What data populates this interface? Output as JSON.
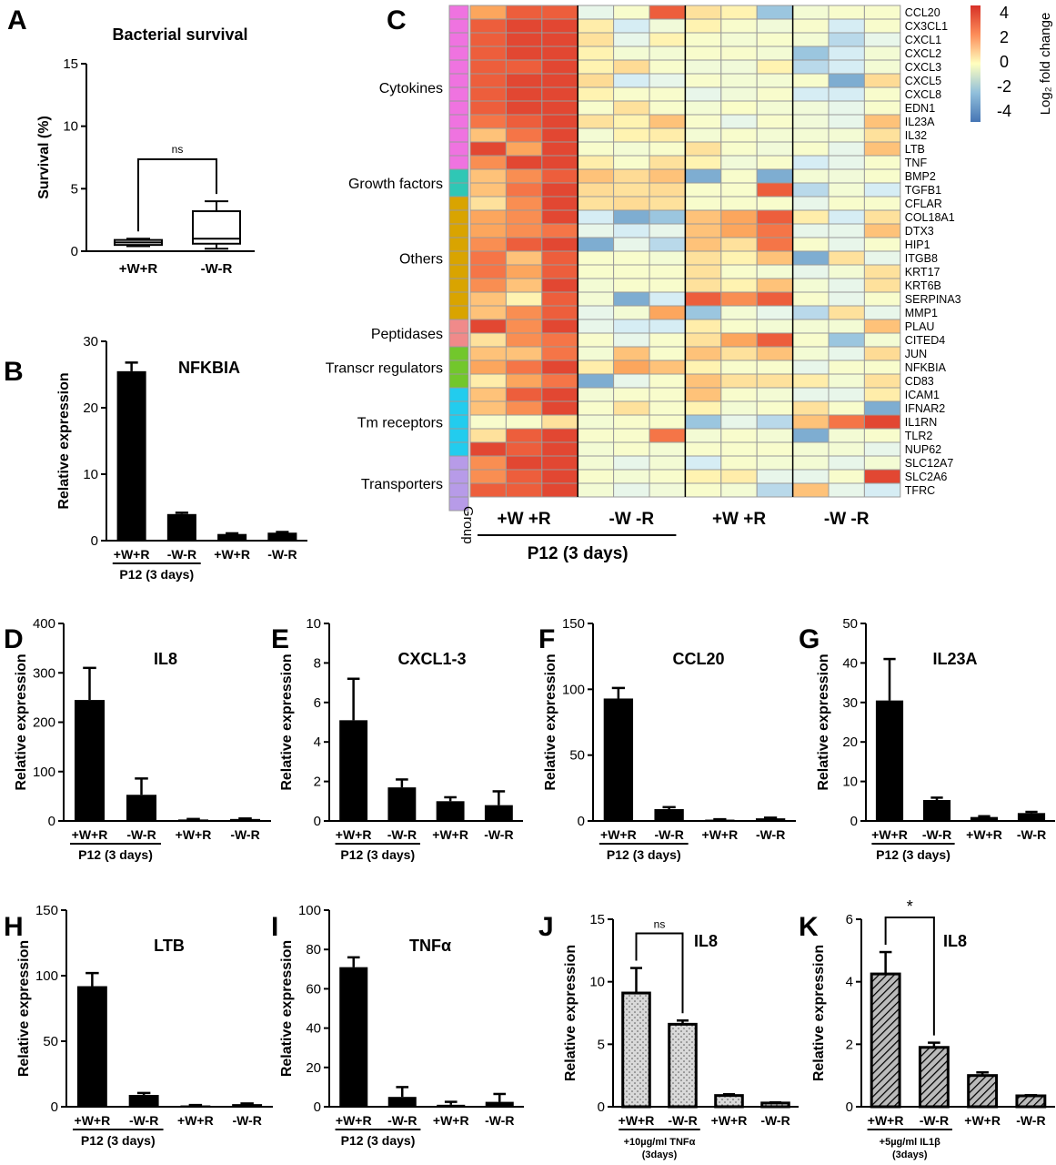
{
  "colors": {
    "bar": "#000000",
    "pattern_light": "#d9d9d9",
    "heat_pos": "#d73027",
    "heat_zero": "#ffffbf",
    "heat_neg": "#4575b4"
  },
  "chart_data": [
    {
      "panel": "A",
      "type": "box",
      "title": "Bacterial survival",
      "ylabel": "Survival (%)",
      "ylim": [
        0,
        15
      ],
      "yticks": [
        0,
        5,
        10,
        15
      ],
      "categories": [
        "+W+R",
        "-W-R"
      ],
      "boxes": [
        {
          "min": 0.4,
          "q1": 0.5,
          "median": 0.7,
          "q3": 0.9,
          "max": 1.0
        },
        {
          "min": 0.2,
          "q1": 0.6,
          "median": 1.0,
          "q3": 3.2,
          "max": 4.0
        }
      ],
      "annotation": "ns"
    },
    {
      "panel": "B",
      "type": "bar",
      "title": "NFKBIA",
      "ylabel": "Relative expression",
      "ylim": [
        0,
        30
      ],
      "yticks": [
        0,
        10,
        20,
        30
      ],
      "categories": [
        "+W+R",
        "-W-R",
        "+W+R",
        "-W-R"
      ],
      "values": [
        25.5,
        4.0,
        1.0,
        1.2
      ],
      "errors": [
        1.3,
        0.2,
        0.1,
        0.1
      ],
      "group_label": "P12 (3 days)"
    },
    {
      "panel": "C",
      "type": "heatmap",
      "legend_title": "Log₂ fold change",
      "legend_ticks": [
        "4",
        "2",
        "0",
        "-2",
        "-4"
      ],
      "group_label": "Group",
      "columns_groups": [
        "+W +R",
        "-W -R",
        "+W +R",
        "-W -R"
      ],
      "bracket_label": "P12 (3 days)",
      "categories": [
        {
          "name": "Cytokines",
          "start": 0,
          "count": 12,
          "color": "#ef73e0"
        },
        {
          "name": "Growth factors",
          "start": 12,
          "count": 2,
          "color": "#2fc7b5"
        },
        {
          "name": "Others",
          "start": 14,
          "count": 9,
          "color": "#d9a400"
        },
        {
          "name": "Peptidases",
          "start": 23,
          "count": 2,
          "color": "#f08a8a"
        },
        {
          "name": "Transcr regulators",
          "start": 25,
          "count": 3,
          "color": "#72c72c"
        },
        {
          "name": "Tm receptors",
          "start": 28,
          "count": 5,
          "color": "#22ccee"
        },
        {
          "name": "Transporters",
          "start": 33,
          "count": 4,
          "color": "#b79be8"
        }
      ],
      "genes": [
        "CCL20",
        "CX3CL1",
        "CXCL1",
        "CXCL2",
        "CXCL3",
        "CXCL5",
        "CXCL8",
        "EDN1",
        "IL23A",
        "IL32",
        "LTB",
        "TNF",
        "BMP2",
        "TGFB1",
        "CFLAR",
        "COL18A1",
        "DTX3",
        "HIP1",
        "ITGB8",
        "KRT17",
        "KRT6B",
        "SERPINA3",
        "MMP1",
        "PLAU",
        "CITED4",
        "JUN",
        "NFKBIA",
        "CD83",
        "ICAM1",
        "IFNAR2",
        "IL1RN",
        "TLR2",
        "NUP62",
        "SLC12A7",
        "SLC2A6",
        "TFRC"
      ],
      "values": [
        [
          1.5,
          3,
          3,
          -1,
          -0.3,
          3,
          0.5,
          0.2,
          -2.5,
          -0.5,
          -0.3,
          -0.3
        ],
        [
          3,
          3.5,
          3.5,
          0.3,
          -1.5,
          -0.6,
          0.2,
          -0.3,
          -0.6,
          -0.3,
          -1.5,
          -0.3
        ],
        [
          3,
          3.5,
          3.5,
          0.5,
          -1,
          0.2,
          -0.3,
          -0.5,
          -0.3,
          -0.5,
          -2,
          -1
        ],
        [
          3,
          3.5,
          3.5,
          0.2,
          -0.5,
          -0.5,
          -0.3,
          -0.3,
          -0.5,
          -2.5,
          -1.5,
          -0.5
        ],
        [
          3,
          3,
          3.5,
          0.2,
          0.6,
          -0.3,
          -0.6,
          -0.6,
          0.2,
          -2,
          -1.5,
          -0.5
        ],
        [
          3,
          3.5,
          3.5,
          0.6,
          -1.5,
          -1,
          -0.3,
          -0.5,
          -0.5,
          -0.3,
          -3,
          0.6
        ],
        [
          3,
          3.5,
          3.5,
          0.2,
          -0.3,
          -0.3,
          -1,
          -0.6,
          -0.3,
          -1.5,
          -1.5,
          -0.3
        ],
        [
          3,
          3.5,
          3.5,
          -0.3,
          0.5,
          -0.3,
          -0.5,
          -0.2,
          -0.5,
          -0.6,
          -1,
          -0.3
        ],
        [
          2.5,
          3,
          3.5,
          0.5,
          0.2,
          1,
          -0.3,
          -1,
          -0.3,
          -0.6,
          -1,
          1
        ],
        [
          1,
          2.5,
          3.5,
          -0.5,
          0.2,
          0.3,
          -0.5,
          -0.3,
          -0.5,
          -0.5,
          -0.5,
          0.5
        ],
        [
          3.5,
          1.5,
          3.5,
          -0.3,
          -0.5,
          -0.3,
          0.5,
          -0.3,
          -0.6,
          -0.3,
          -1,
          1
        ],
        [
          2,
          3.5,
          3.5,
          0.3,
          -0.3,
          0.5,
          0.2,
          -0.6,
          -0.3,
          -1.5,
          -1,
          -0.3
        ],
        [
          1,
          2,
          3,
          1,
          0.6,
          1,
          -3,
          -0.3,
          -3,
          -0.5,
          -0.6,
          -0.3
        ],
        [
          1,
          2.5,
          3.5,
          0.6,
          0.5,
          0.6,
          -0.3,
          -0.3,
          3,
          -2,
          -0.5,
          -1.5
        ],
        [
          0.5,
          2,
          3.5,
          0.5,
          0.6,
          0.5,
          -0.3,
          -0.3,
          -0.3,
          -1,
          -0.3,
          -0.3
        ],
        [
          1.5,
          2,
          3.5,
          -1.5,
          -3,
          -2.5,
          1,
          1.5,
          3,
          0.3,
          -1.5,
          0.5
        ],
        [
          1.5,
          2,
          2.5,
          -1,
          -1.5,
          -1,
          1,
          1.5,
          2.5,
          -1,
          -1,
          1
        ],
        [
          2,
          3,
          3.5,
          -3,
          -1,
          -2,
          1,
          0.5,
          2.5,
          -0.3,
          -1,
          -0.3
        ],
        [
          2.5,
          1,
          3,
          -0.3,
          -0.3,
          -0.5,
          0.5,
          0.2,
          1,
          -3,
          0.5,
          -1
        ],
        [
          2.5,
          1.5,
          3,
          -0.3,
          -0.3,
          -0.3,
          0.5,
          -0.3,
          -0.5,
          -1,
          -0.5,
          0.5
        ],
        [
          2,
          1,
          3.5,
          -0.5,
          -0.3,
          -0.3,
          0.5,
          0.2,
          1,
          -0.5,
          -1,
          0.5
        ],
        [
          1,
          0.2,
          3,
          -0.5,
          -3,
          -1.5,
          3,
          2,
          3,
          -0.3,
          -1,
          -0.3
        ],
        [
          1,
          2,
          3,
          -1,
          -0.5,
          1.5,
          -2.5,
          -0.5,
          -1,
          -2,
          0.5,
          -1
        ],
        [
          3.5,
          2,
          3.5,
          -1,
          -1.5,
          -1.5,
          0.3,
          -0.3,
          -0.5,
          -0.5,
          -0.5,
          1
        ],
        [
          0.5,
          2,
          2.5,
          -0.3,
          -1,
          -0.3,
          0.5,
          1.5,
          3,
          -0.3,
          -2.5,
          -0.5
        ],
        [
          1,
          1,
          2.5,
          -0.5,
          1,
          -0.3,
          1,
          0.5,
          1,
          -0.5,
          -1,
          0.6
        ],
        [
          1.5,
          2.5,
          3.5,
          0.3,
          1.5,
          1,
          0.2,
          -0.3,
          -0.3,
          -1,
          -0.3,
          -0.3
        ],
        [
          0.3,
          1.5,
          2.5,
          -3,
          -1,
          -0.3,
          1,
          0.5,
          0.5,
          0.3,
          -0.5,
          0.5
        ],
        [
          1,
          3,
          3.5,
          -0.5,
          -0.3,
          -0.3,
          1,
          -0.3,
          -0.5,
          -1,
          -1,
          0.3
        ],
        [
          1,
          2,
          3.5,
          -0.3,
          0.5,
          -0.3,
          0.2,
          -0.5,
          -0.3,
          0.5,
          -0.3,
          -3
        ],
        [
          -0.3,
          -0.3,
          0.5,
          -0.5,
          -0.3,
          -0.3,
          -2.5,
          -1,
          -2,
          1,
          2.5,
          3.5
        ],
        [
          0.5,
          3,
          3.5,
          -0.3,
          -0.3,
          2.5,
          -0.5,
          -0.3,
          -0.5,
          -3,
          -0.5,
          -0.3
        ],
        [
          3.5,
          3,
          3.5,
          -0.5,
          -0.3,
          -0.5,
          -0.3,
          -0.3,
          -0.3,
          -0.5,
          -0.5,
          -1
        ],
        [
          2,
          3.5,
          3.5,
          -0.5,
          -1,
          -0.5,
          -1.5,
          -0.3,
          -0.5,
          -0.5,
          -1,
          -0.5
        ],
        [
          2,
          3,
          3.5,
          -0.3,
          -0.5,
          -0.3,
          0.2,
          0.3,
          -1,
          -1,
          -0.3,
          3.5
        ],
        [
          3,
          3,
          3.5,
          -0.5,
          -1,
          -0.6,
          -0.3,
          -0.5,
          -2,
          1,
          -1,
          -1.5
        ]
      ]
    },
    {
      "panel": "D",
      "type": "bar",
      "title": "IL8",
      "ylabel": "Relative expression",
      "ylim": [
        0,
        400
      ],
      "yticks": [
        0,
        100,
        200,
        300,
        400
      ],
      "categories": [
        "+W+R",
        "-W-R",
        "+W+R",
        "-W-R"
      ],
      "values": [
        245,
        53,
        3,
        4
      ],
      "errors": [
        65,
        33,
        1,
        1
      ],
      "group_label": "P12 (3 days)"
    },
    {
      "panel": "E",
      "type": "bar",
      "title": "CXCL1-3",
      "ylabel": "Relative expression",
      "ylim": [
        0,
        10
      ],
      "yticks": [
        0,
        2,
        4,
        6,
        8,
        10
      ],
      "categories": [
        "+W+R",
        "-W-R",
        "+W+R",
        "-W-R"
      ],
      "values": [
        5.1,
        1.7,
        1.0,
        0.8
      ],
      "errors": [
        2.1,
        0.4,
        0.2,
        0.7
      ],
      "group_label": "P12 (3 days)"
    },
    {
      "panel": "F",
      "type": "bar",
      "title": "CCL20",
      "ylabel": "Relative expression",
      "ylim": [
        0,
        150
      ],
      "yticks": [
        0,
        50,
        100,
        150
      ],
      "categories": [
        "+W+R",
        "-W-R",
        "+W+R",
        "-W-R"
      ],
      "values": [
        93,
        9,
        1,
        2
      ],
      "errors": [
        8,
        1.5,
        0.3,
        0.5
      ],
      "group_label": "P12 (3 days)"
    },
    {
      "panel": "G",
      "type": "bar",
      "title": "IL23A",
      "ylabel": "Relative expression",
      "ylim": [
        0,
        50
      ],
      "yticks": [
        0,
        10,
        20,
        30,
        40,
        50
      ],
      "categories": [
        "+W+R",
        "-W-R",
        "+W+R",
        "-W-R"
      ],
      "values": [
        30.5,
        5.3,
        1.0,
        2.0
      ],
      "errors": [
        10.5,
        0.6,
        0.2,
        0.3
      ],
      "group_label": "P12 (3 days)"
    },
    {
      "panel": "H",
      "type": "bar",
      "title": "LTB",
      "ylabel": "Relative expression",
      "ylim": [
        0,
        150
      ],
      "yticks": [
        0,
        50,
        100,
        150
      ],
      "categories": [
        "+W+R",
        "-W-R",
        "+W+R",
        "-W-R"
      ],
      "values": [
        92,
        9,
        1,
        2
      ],
      "errors": [
        10,
        1.5,
        0.3,
        0.5
      ],
      "group_label": "P12 (3 days)"
    },
    {
      "panel": "I",
      "type": "bar",
      "title": "TNFα",
      "ylabel": "Relative expression",
      "ylim": [
        0,
        100
      ],
      "yticks": [
        0,
        20,
        40,
        60,
        80,
        100
      ],
      "categories": [
        "+W+R",
        "-W-R",
        "+W+R",
        "-W-R"
      ],
      "values": [
        71,
        5,
        1,
        2.5
      ],
      "errors": [
        5,
        5,
        1.5,
        4
      ],
      "group_label": "P12 (3 days)"
    },
    {
      "panel": "J",
      "type": "bar",
      "title": "IL8",
      "ylabel": "Relative expression",
      "ylim": [
        0,
        15
      ],
      "yticks": [
        0,
        5,
        10,
        15
      ],
      "categories": [
        "+W+R",
        "-W-R",
        "+W+R",
        "-W-R"
      ],
      "values": [
        9.1,
        6.6,
        0.9,
        0.3
      ],
      "errors": [
        2.0,
        0.3,
        0.1,
        0.05
      ],
      "group_label": "+10µg/ml TNFα",
      "group_sub": "(3days)",
      "annotation": "ns",
      "pattern": "dots"
    },
    {
      "panel": "K",
      "type": "bar",
      "title": "IL8",
      "ylabel": "Relative expression",
      "ylim": [
        0,
        6
      ],
      "yticks": [
        0,
        2,
        4,
        6
      ],
      "categories": [
        "+W+R",
        "-W-R",
        "+W+R",
        "-W-R"
      ],
      "values": [
        4.25,
        1.9,
        1.0,
        0.35
      ],
      "errors": [
        0.7,
        0.15,
        0.1,
        0.02
      ],
      "group_label": "+5µg/ml IL1β",
      "group_sub": "(3days)",
      "annotation": "*",
      "pattern": "hatch"
    }
  ]
}
